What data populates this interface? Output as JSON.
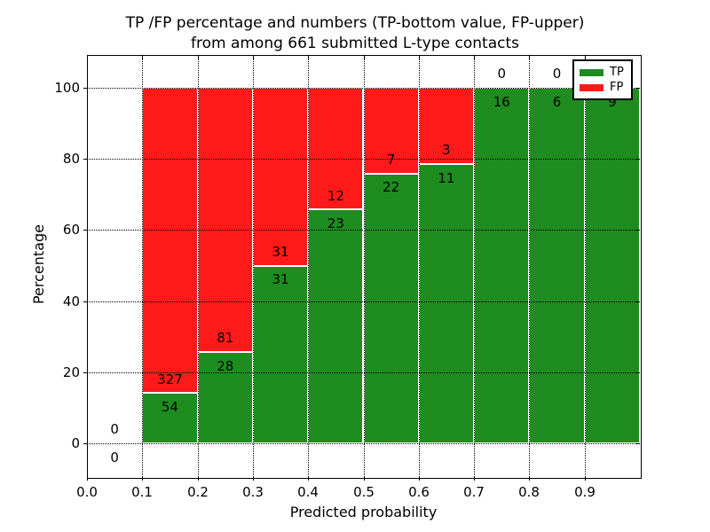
{
  "title": {
    "line1": "TP /FP percentage and numbers (TP-bottom value, FP-upper)",
    "line2": "from among 661 submitted L-type contacts"
  },
  "axes": {
    "xlabel": "Predicted probability",
    "ylabel": "Percentage",
    "x_ticks": [
      "0.0",
      "0.1",
      "0.2",
      "0.3",
      "0.4",
      "0.5",
      "0.6",
      "0.7",
      "0.8",
      "0.9"
    ],
    "y_ticks": [
      "0",
      "20",
      "40",
      "60",
      "80",
      "100"
    ],
    "grid_style": "dotted"
  },
  "legend": {
    "position": "upper-right",
    "items": [
      {
        "label": "TP",
        "color": "#1E8C1E"
      },
      {
        "label": "FP",
        "color": "#FF1A1A"
      }
    ]
  },
  "colors": {
    "tp": "#1E8C1E",
    "fp": "#FF1A1A",
    "grid": "#000000",
    "text": "#000000",
    "background": "#FFFFFF",
    "bar_edge": "#FFFFFF",
    "legend_border": "#000000"
  },
  "chart_data": {
    "type": "bar",
    "stacked": true,
    "title": "TP /FP percentage and numbers (TP-bottom value, FP-upper) from among 661 submitted L-type contacts",
    "xlabel": "Predicted probability",
    "ylabel": "Percentage",
    "xlim": [
      0.0,
      1.0
    ],
    "ylim": [
      -9.5,
      109.3
    ],
    "grid": "on",
    "legend_position": "upper right",
    "total_submitted": 661,
    "note": "Each 0.1-wide probability bin is a 100%-stacked bar: green TP segment on bottom with height TP/(TP+FP)*100, red FP segment filling to 100%. Annotations show FP count above the segment boundary and TP count below it.",
    "bins": [
      {
        "x_start": 0.0,
        "x_end": 0.1,
        "tp": 0,
        "fp": 0,
        "tp_pct": null
      },
      {
        "x_start": 0.1,
        "x_end": 0.2,
        "tp": 54,
        "fp": 327,
        "tp_pct": 14.2
      },
      {
        "x_start": 0.2,
        "x_end": 0.3,
        "tp": 28,
        "fp": 81,
        "tp_pct": 25.7
      },
      {
        "x_start": 0.3,
        "x_end": 0.4,
        "tp": 31,
        "fp": 31,
        "tp_pct": 50.0
      },
      {
        "x_start": 0.4,
        "x_end": 0.5,
        "tp": 23,
        "fp": 12,
        "tp_pct": 65.7
      },
      {
        "x_start": 0.5,
        "x_end": 0.6,
        "tp": 22,
        "fp": 7,
        "tp_pct": 75.9
      },
      {
        "x_start": 0.6,
        "x_end": 0.7,
        "tp": 11,
        "fp": 3,
        "tp_pct": 78.6
      },
      {
        "x_start": 0.7,
        "x_end": 0.8,
        "tp": 16,
        "fp": 0,
        "tp_pct": 100.0
      },
      {
        "x_start": 0.8,
        "x_end": 0.9,
        "tp": 6,
        "fp": 0,
        "tp_pct": 100.0
      },
      {
        "x_start": 0.9,
        "x_end": 1.0,
        "tp": 9,
        "fp": 0,
        "tp_pct": 100.0
      }
    ]
  }
}
